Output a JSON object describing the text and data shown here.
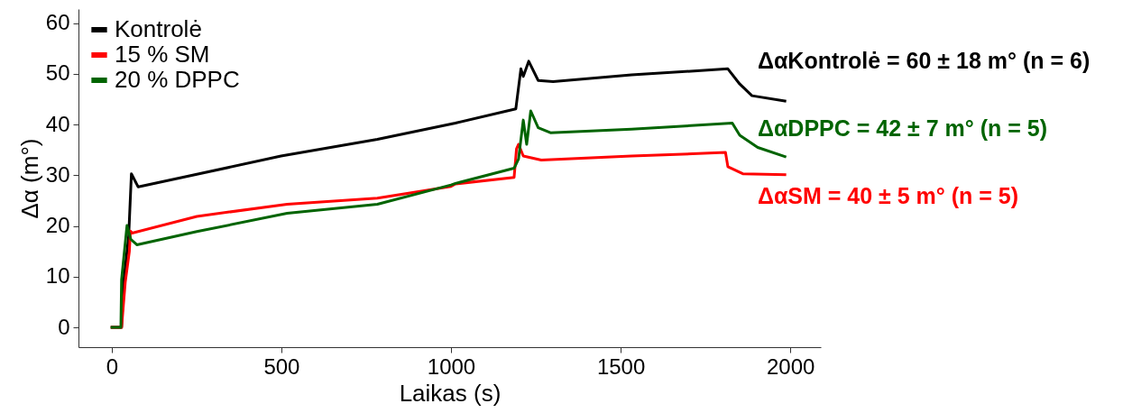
{
  "chart_data": {
    "type": "line",
    "xlabel": "Laikas (s)",
    "ylabel": "Δα (m°)",
    "xlim": [
      -98,
      2090
    ],
    "ylim": [
      -3.9,
      62.8
    ],
    "xticks": [
      0,
      500,
      1000,
      1500,
      2000
    ],
    "yticks": [
      0,
      10,
      20,
      30,
      40,
      50,
      60
    ],
    "grid": false,
    "legend": "top left",
    "line_style": "solid",
    "marker": "none",
    "series": [
      {
        "name": "Kontrolė",
        "color": "#000000",
        "x": [
          -3,
          29,
          35,
          50,
          58,
          78,
          251,
          499,
          783,
          1013,
          1191,
          1206,
          1213,
          1229,
          1257,
          1301,
          1532,
          1816,
          1851,
          1887,
          1988
        ],
        "values": [
          0,
          0,
          9,
          18,
          30.3,
          27.7,
          30.2,
          33.8,
          37.1,
          40.3,
          43.1,
          51.0,
          49.5,
          52.5,
          48.7,
          48.5,
          49.8,
          51.0,
          48.0,
          45.7,
          44.6
        ]
      },
      {
        "name": "15 % SM",
        "color": "#ff0000",
        "x": [
          -3,
          29,
          40,
          52,
          55,
          60,
          251,
          517,
          783,
          1000,
          1013,
          1186,
          1193,
          1199,
          1213,
          1266,
          1532,
          1809,
          1816,
          1860,
          1988
        ],
        "values": [
          0,
          0,
          9,
          15,
          19,
          18.6,
          21.9,
          24.3,
          25.5,
          27.8,
          28.3,
          29.6,
          35.2,
          36.1,
          33.8,
          33.0,
          33.8,
          34.5,
          31.7,
          30.3,
          30.1
        ]
      },
      {
        "name": "20 % DPPC",
        "color": "#006400",
        "x": [
          -3,
          27,
          29,
          45,
          56,
          74,
          251,
          517,
          783,
          1000,
          1013,
          1186,
          1199,
          1213,
          1223,
          1235,
          1257,
          1293,
          1532,
          1829,
          1851,
          1904,
          1988
        ],
        "values": [
          0,
          0,
          9.4,
          20.1,
          17.4,
          16.3,
          18.9,
          22.5,
          24.3,
          28.1,
          28.4,
          31.4,
          33.2,
          40.9,
          36.1,
          42.7,
          39.4,
          38.4,
          39.1,
          40.3,
          37.9,
          35.5,
          33.6
        ]
      }
    ],
    "annotations": [
      "ΔαKontrolė = 60 ± 18 m° (n = 6)",
      "ΔαDPPC = 42 ± 7 m° (n = 5)",
      "ΔαSM = 40 ± 5 m° (n = 5)"
    ]
  }
}
